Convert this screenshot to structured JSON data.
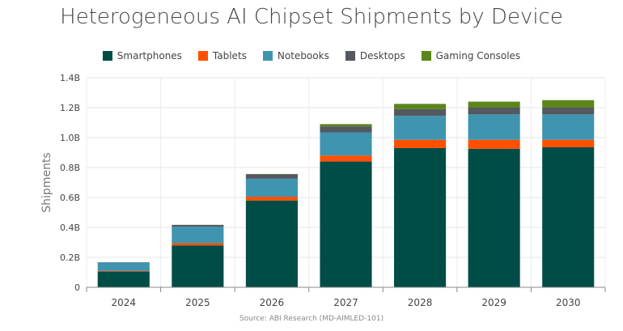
{
  "chart_data": {
    "type": "bar",
    "stacked": true,
    "title": "Heterogeneous AI Chipset Shipments by Device",
    "ylabel": "Shipments",
    "xlabel": "",
    "source": "Source: ABI Research (MD-AIMLED-101)",
    "categories": [
      "2024",
      "2025",
      "2026",
      "2027",
      "2028",
      "2029",
      "2030"
    ],
    "ylim": [
      0,
      1.4
    ],
    "yticks": [
      0,
      0.2,
      0.4,
      0.6,
      0.8,
      1.0,
      1.2,
      1.4
    ],
    "ytick_labels": [
      "0",
      "0.2B",
      "0.4B",
      "0.6B",
      "0.8B",
      "1.0B",
      "1.2B",
      "1.4B"
    ],
    "grid": true,
    "legend_position": "top",
    "series": [
      {
        "name": "Smartphones",
        "color": "#004d47",
        "values": [
          0.105,
          0.28,
          0.58,
          0.84,
          0.93,
          0.925,
          0.935
        ]
      },
      {
        "name": "Tablets",
        "color": "#fe5000",
        "values": [
          0.005,
          0.015,
          0.025,
          0.04,
          0.055,
          0.06,
          0.05
        ]
      },
      {
        "name": "Notebooks",
        "color": "#3f94b0",
        "values": [
          0.055,
          0.11,
          0.12,
          0.155,
          0.16,
          0.17,
          0.17
        ]
      },
      {
        "name": "Desktops",
        "color": "#545860",
        "values": [
          0.002,
          0.012,
          0.03,
          0.04,
          0.045,
          0.045,
          0.045
        ]
      },
      {
        "name": "Gaming Consoles",
        "color": "#5b861b",
        "values": [
          0,
          0,
          0.002,
          0.015,
          0.035,
          0.04,
          0.05
        ]
      }
    ]
  }
}
